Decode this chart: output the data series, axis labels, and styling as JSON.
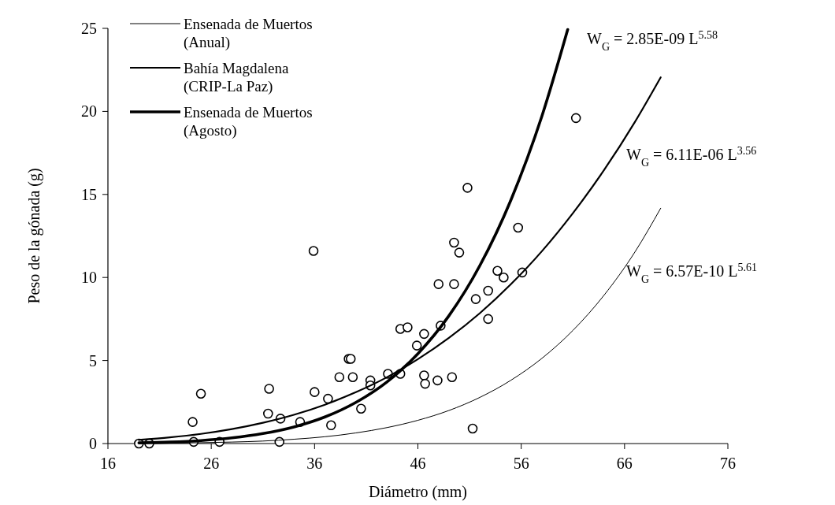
{
  "chart_data": {
    "type": "scatter",
    "xlabel": "Diámetro (mm)",
    "ylabel": "Peso de la gónada (g)",
    "xlim": [
      16,
      76
    ],
    "ylim": [
      0,
      25
    ],
    "xticks": [
      16,
      26,
      36,
      46,
      56,
      66,
      76
    ],
    "yticks": [
      0,
      5,
      10,
      15,
      20,
      25
    ],
    "grid": false,
    "legend": "top left",
    "series": [
      {
        "color": "#000000",
        "marker": "circle",
        "x": [
          19.0,
          20.0,
          24.2,
          25.0,
          24.3,
          26.8,
          31.6,
          31.5,
          32.7,
          32.6,
          34.6,
          36.0,
          37.3,
          37.6,
          38.4,
          39.3,
          39.5,
          39.7,
          35.9,
          50.8,
          55.7,
          49.5,
          50.0,
          53.7,
          54.3,
          56.1,
          48.0,
          49.5,
          52.8,
          51.6,
          52.8,
          48.2,
          44.3,
          45.0,
          46.6,
          45.9,
          41.4,
          41.4,
          43.1,
          44.3,
          46.6,
          46.7,
          47.9,
          49.3,
          40.5,
          51.3,
          61.3
        ],
        "values": [
          0,
          0,
          1.3,
          3.0,
          0.1,
          0.1,
          3.3,
          1.8,
          1.5,
          0.1,
          1.3,
          3.1,
          2.7,
          1.1,
          4.0,
          5.1,
          5.1,
          4.0,
          11.6,
          15.4,
          13.0,
          12.1,
          11.5,
          10.4,
          10.0,
          10.3,
          9.6,
          9.6,
          9.2,
          8.7,
          7.5,
          7.1,
          6.9,
          7.0,
          6.6,
          5.9,
          3.8,
          3.5,
          4.2,
          4.2,
          4.1,
          3.6,
          3.8,
          4.0,
          2.1,
          0.9,
          19.6
        ]
      },
      {
        "type": "line",
        "name": "Ensenada de Muertos (Anual)",
        "color": "#000000",
        "marker": "none",
        "x": [
          19,
          22,
          25,
          28,
          31,
          34,
          37,
          40,
          43,
          46,
          49,
          52,
          55,
          58,
          61,
          64,
          67,
          69.5
        ],
        "values": [
          0.01,
          0.02,
          0.05,
          0.09,
          0.15,
          0.26,
          0.41,
          0.64,
          0.96,
          1.4,
          1.99,
          2.78,
          3.81,
          5.13,
          6.81,
          8.92,
          11.53,
          14.17
        ]
      },
      {
        "type": "line",
        "name": "Bahía Magdalena (CRIP-La Paz)",
        "color": "#000000",
        "marker": "none",
        "x": [
          19,
          22,
          25,
          28,
          31,
          34,
          37,
          40,
          43,
          46,
          49,
          52,
          55,
          58,
          61,
          64,
          67,
          69.5
        ],
        "values": [
          0.22,
          0.37,
          0.58,
          0.87,
          1.25,
          1.73,
          2.34,
          3.09,
          3.99,
          5.08,
          6.36,
          7.85,
          9.59,
          11.58,
          13.87,
          16.45,
          19.36,
          22.05
        ]
      },
      {
        "type": "line",
        "name": "Ensenada de Muertos (Agosto)",
        "color": "#000000",
        "marker": "none",
        "x": [
          19,
          22,
          25,
          28,
          31,
          34,
          37,
          40,
          43,
          46,
          49,
          52,
          55,
          58,
          60.5
        ],
        "values": [
          0.04,
          0.09,
          0.18,
          0.34,
          0.6,
          1.0,
          1.6,
          2.48,
          3.71,
          5.41,
          7.69,
          10.72,
          14.66,
          19.71,
          24.93
        ]
      }
    ],
    "annotations": [
      "W$_{G}$ = 2.85E-09 L$^{5.58}$",
      "W$_{G}$ = 6.11E-06 L$^{3.56}$",
      "W$_{G}$ = 6.57E-10 L$^{5.61}$"
    ]
  }
}
